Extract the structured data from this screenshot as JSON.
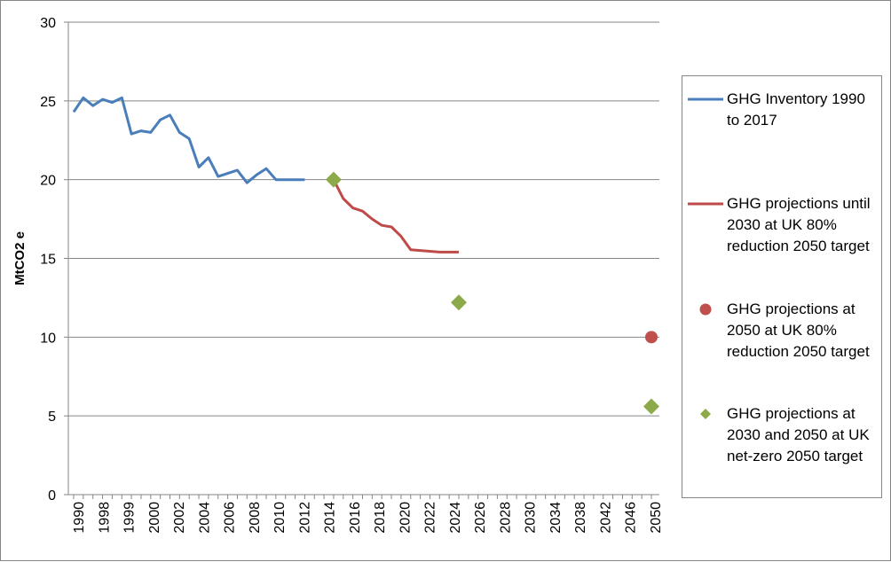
{
  "chart_data": {
    "type": "line",
    "title": "",
    "ylabel": "MtCO2 e",
    "xlabel": "",
    "xlim": [
      1990,
      2050
    ],
    "ylim": [
      0,
      30
    ],
    "yticks": [
      0,
      5,
      10,
      15,
      20,
      25,
      30
    ],
    "xticks": [
      1990,
      1998,
      1999,
      2000,
      2002,
      2004,
      2006,
      2008,
      2010,
      2012,
      2014,
      2016,
      2018,
      2020,
      2022,
      2024,
      2026,
      2028,
      2030,
      2034,
      2038,
      2042,
      2046,
      2050
    ],
    "grid": true,
    "legend_position": "right",
    "series": [
      {
        "name": "GHG Inventory 1990 to 2017",
        "kind": "line",
        "color": "#4A7EBB",
        "x": [
          1990,
          1991,
          1992,
          1993,
          1994,
          1995,
          1996,
          1997,
          1998,
          1999,
          2000,
          2001,
          2002,
          2003,
          2004,
          2005,
          2006,
          2007,
          2008,
          2009,
          2010,
          2011,
          2012,
          2013,
          2014
        ],
        "y": [
          24.3,
          25.2,
          24.7,
          25.1,
          24.9,
          25.2,
          22.9,
          23.1,
          23.0,
          23.8,
          24.1,
          23.0,
          22.6,
          20.8,
          21.4,
          20.2,
          20.4,
          20.6,
          19.8,
          20.3,
          20.7,
          20.0,
          20.0,
          20.0,
          20.0
        ]
      },
      {
        "name": "GHG projections until 2030 at UK 80% reduction 2050 target",
        "kind": "line",
        "color": "#BE4B48",
        "x": [
          2017,
          2018,
          2019,
          2020,
          2021,
          2022,
          2023,
          2024,
          2025,
          2026,
          2027,
          2028,
          2029,
          2030
        ],
        "y": [
          20.0,
          18.8,
          18.2,
          18.0,
          17.5,
          17.1,
          17.0,
          16.4,
          15.55,
          15.5,
          15.45,
          15.4,
          15.4,
          15.4
        ]
      },
      {
        "name": "GHG projections at 2050 at UK 80% reduction 2050 target",
        "kind": "scatter",
        "marker": "circle",
        "color": "#C0504D",
        "x": [
          2050
        ],
        "y": [
          10.0
        ]
      },
      {
        "name": "GHG projections at 2030 and 2050 at UK net-zero 2050 target",
        "kind": "scatter",
        "marker": "diamond",
        "color": "#8CAA4A",
        "x": [
          2017,
          2030,
          2050
        ],
        "y": [
          20.0,
          12.2,
          5.6
        ]
      }
    ]
  }
}
